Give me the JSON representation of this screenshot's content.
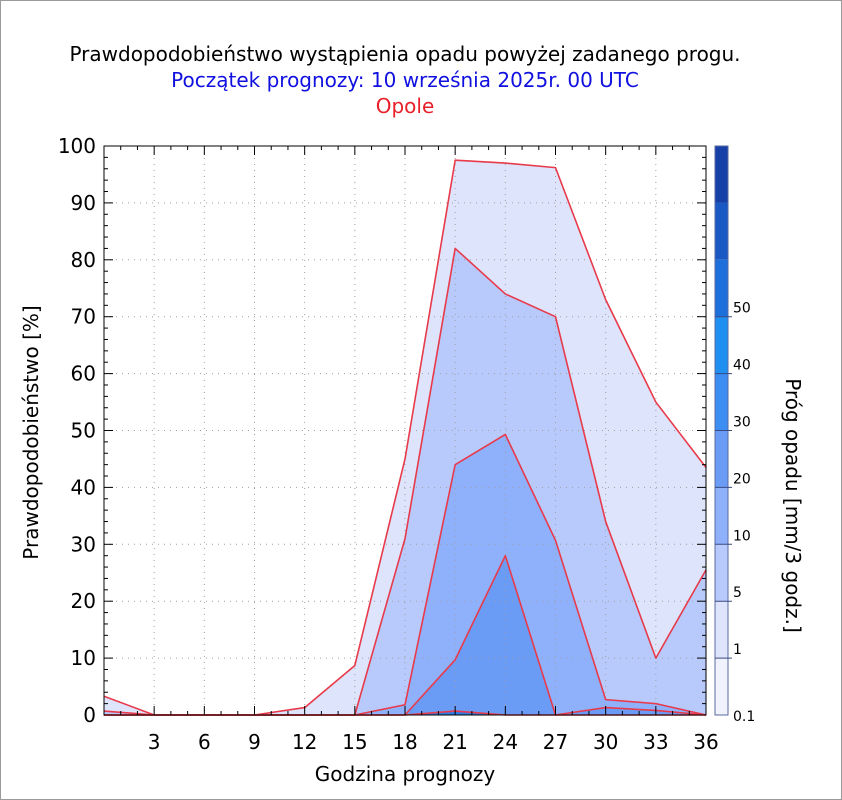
{
  "title": "Prawdopodobieństwo wystąpienia opadu powyżej zadanego progu.",
  "subtitle": "Początek prognozy: 10 września 2025r. 00 UTC",
  "location": "Opole",
  "chart_data": {
    "type": "area",
    "xlabel": "Godzina prognozy",
    "ylabel": "Prawdopodobieństwo [%]",
    "xlim": [
      0,
      36
    ],
    "ylim": [
      0,
      100
    ],
    "x": [
      0,
      3,
      6,
      9,
      12,
      15,
      18,
      21,
      24,
      27,
      30,
      33,
      36
    ],
    "x_tick_labels": [
      "3",
      "6",
      "9",
      "12",
      "15",
      "18",
      "21",
      "24",
      "27",
      "30",
      "33",
      "36"
    ],
    "x_ticks": [
      3,
      6,
      9,
      12,
      15,
      18,
      21,
      24,
      27,
      30,
      33,
      36
    ],
    "y_ticks": [
      0,
      10,
      20,
      30,
      40,
      50,
      60,
      70,
      80,
      90,
      100
    ],
    "y_tick_labels": [
      "0",
      "10",
      "20",
      "30",
      "40",
      "50",
      "60",
      "70",
      "80",
      "90",
      "100"
    ],
    "grid": true,
    "line_color": "#e83a4a",
    "series": [
      {
        "name": "0.1",
        "color": "#dde4fb",
        "values": [
          3.3,
          0,
          0,
          0,
          1.3,
          8.7,
          45,
          97.5,
          97,
          96.2,
          73,
          55,
          43.5
        ]
      },
      {
        "name": "1",
        "color": "#b8cafb",
        "values": [
          0.7,
          0,
          0,
          0,
          0,
          0,
          31,
          82,
          74,
          70,
          34,
          10,
          25.5
        ]
      },
      {
        "name": "5",
        "color": "#8fb0fb",
        "values": [
          0,
          0,
          0,
          0,
          0,
          0,
          1.8,
          44,
          49.3,
          30.7,
          2.7,
          2,
          0
        ]
      },
      {
        "name": "10",
        "color": "#6b9cf5",
        "values": [
          0,
          0,
          0,
          0,
          0,
          0,
          0,
          9.7,
          28,
          0,
          1.3,
          0.8,
          0
        ]
      },
      {
        "name": "20",
        "color": "#2d7ee8",
        "values": [
          0,
          0,
          0,
          0,
          0,
          0,
          0,
          0.7,
          0,
          0,
          0,
          0,
          0
        ]
      }
    ]
  },
  "colorbar": {
    "label": "Próg opadu [mm/3 godz.]",
    "tick_labels": [
      "0.1",
      "1",
      "5",
      "10",
      "20",
      "30",
      "40",
      "50"
    ],
    "colors": [
      "#f0f2fe",
      "#dde4fb",
      "#b8cafb",
      "#8fb0fb",
      "#6b9cf5",
      "#3d8ef2",
      "#1f90f2",
      "#1d6fdc",
      "#1a58c4",
      "#173fa8"
    ]
  }
}
